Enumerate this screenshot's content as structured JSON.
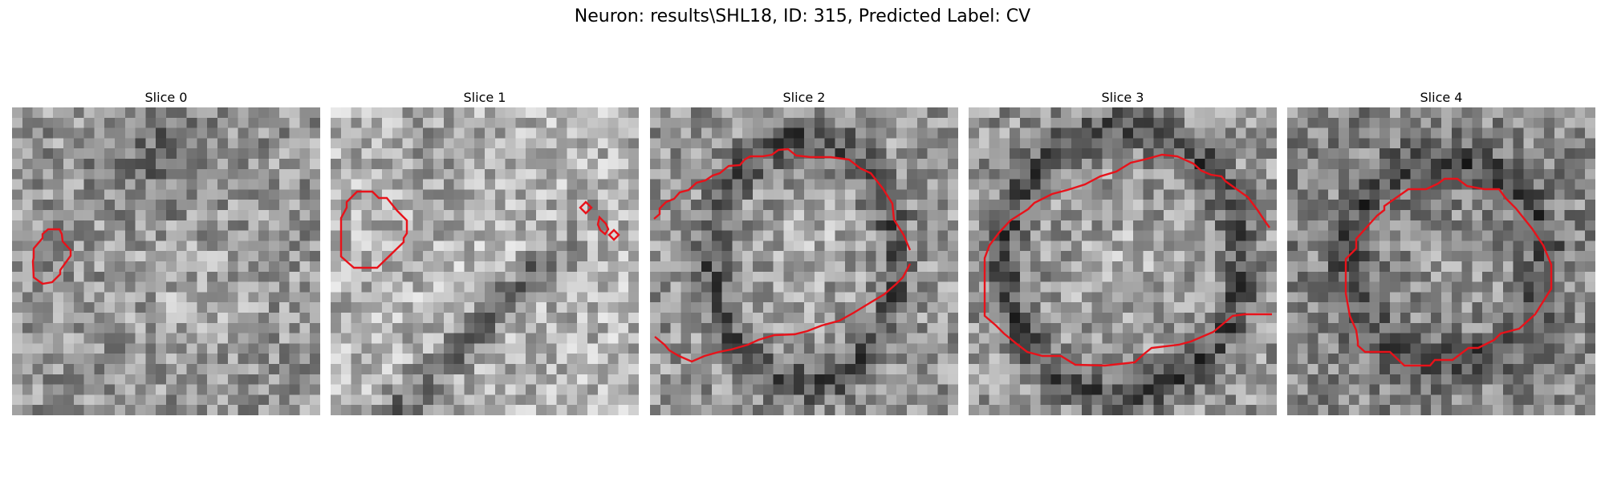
{
  "figure": {
    "title": "Neuron: results\\SHL18, ID: 315, Predicted Label: CV"
  },
  "panels": [
    {
      "title": "Slice 0"
    },
    {
      "title": "Slice 1"
    },
    {
      "title": "Slice 2"
    },
    {
      "title": "Slice 3"
    },
    {
      "title": "Slice 4"
    }
  ],
  "colors": {
    "contour": "#e8121a",
    "background": "#ffffff"
  }
}
